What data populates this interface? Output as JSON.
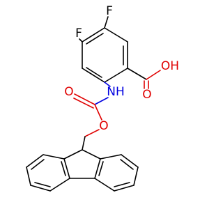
{
  "labels": {
    "fluorine_top": "F",
    "fluorine_left": "F",
    "hydroxyl": "OH",
    "carbonyl_acid": "O",
    "amine": "NH",
    "carbonyl_carbamate": "O",
    "ester_oxygen": "O"
  }
}
